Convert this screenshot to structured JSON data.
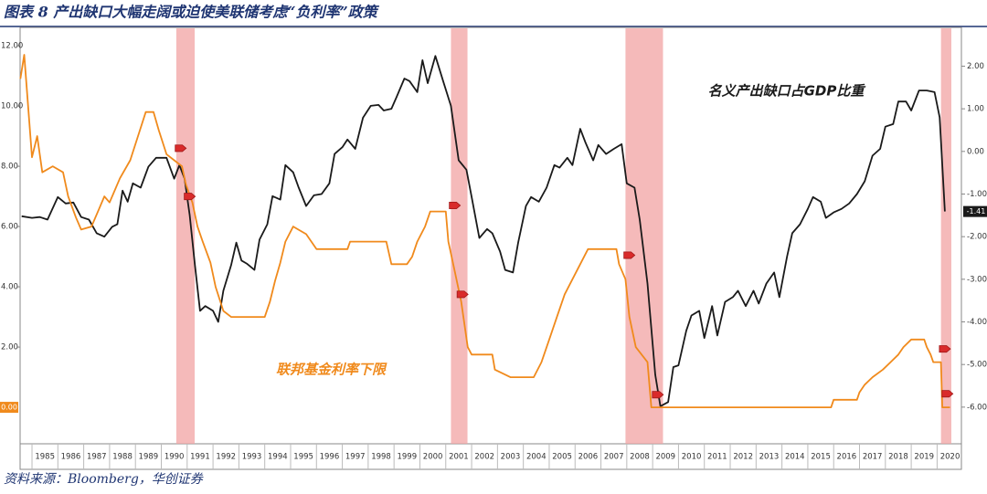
{
  "chart_data": {
    "type": "line",
    "title": "图表 8 产出缺口大幅走阔或迫使美联储考虑“负利率”政策",
    "source": "资料来源：Bloomberg，华创证券",
    "annotations": [
      {
        "text": "名义产出缺口占GDP比重",
        "series": 0
      },
      {
        "text": "联邦基金利率下限",
        "series": 1
      }
    ],
    "xlim": [
      1984.54,
      2020.94
    ],
    "xticks": [
      1985,
      1986,
      1987,
      1988,
      1989,
      1990,
      1991,
      1992,
      1993,
      1994,
      1995,
      1996,
      1997,
      1998,
      1999,
      2000,
      2001,
      2002,
      2003,
      2004,
      2005,
      2006,
      2007,
      2008,
      2009,
      2010,
      2011,
      2012,
      2013,
      2014,
      2015,
      2016,
      2017,
      2018,
      2019,
      2020
    ],
    "ylim": [
      -1.21,
      12.61
    ],
    "yticks": [
      {
        "value": 2,
        "label": "2.00"
      },
      {
        "value": 4,
        "label": "4.00"
      },
      {
        "value": 6,
        "label": "6.00"
      },
      {
        "value": 8,
        "label": "8.00"
      },
      {
        "value": 10,
        "label": "10.00"
      },
      {
        "value": 12,
        "label": "12.00"
      }
    ],
    "y2lim": [
      -6.86,
      2.91
    ],
    "y2ticks": [
      {
        "value": 2,
        "label": "2.00"
      },
      {
        "value": 1,
        "label": "1.00"
      },
      {
        "value": 0,
        "label": "0.00"
      },
      {
        "value": -1,
        "label": "-1.00"
      },
      {
        "value": -2,
        "label": "-2.00"
      },
      {
        "value": -3,
        "label": "-3.00"
      },
      {
        "value": -4,
        "label": "-4.00"
      },
      {
        "value": -5,
        "label": "-5.00"
      },
      {
        "value": -6,
        "label": "-6.00"
      }
    ],
    "shaded_periods": [
      [
        1990.58,
        1991.29
      ],
      [
        2001.2,
        2001.84
      ],
      [
        2007.95,
        2009.4
      ],
      [
        2020.15,
        2020.55
      ]
    ],
    "series": [
      {
        "name": "名义产出缺口占GDP比重",
        "color": "#1a1a1a",
        "axis": "y2",
        "end_label": "-1.41",
        "x": [
          1984.6,
          1985.0,
          1985.3,
          1985.6,
          1986.0,
          1986.3,
          1986.6,
          1986.9,
          1987.2,
          1987.5,
          1987.8,
          1988.1,
          1988.3,
          1988.5,
          1988.7,
          1988.9,
          1989.2,
          1989.5,
          1989.8,
          1990.2,
          1990.5,
          1990.7,
          1990.9,
          1991.1,
          1991.3,
          1991.5,
          1991.7,
          1992.0,
          1992.2,
          1992.4,
          1992.7,
          1992.9,
          1993.1,
          1993.3,
          1993.6,
          1993.8,
          1994.1,
          1994.3,
          1994.6,
          1994.8,
          1995.1,
          1995.3,
          1995.6,
          1995.9,
          1996.2,
          1996.5,
          1996.7,
          1997.0,
          1997.2,
          1997.5,
          1997.8,
          1998.1,
          1998.4,
          1998.6,
          1998.9,
          1999.1,
          1999.4,
          1999.6,
          1999.9,
          2000.1,
          2000.3,
          2000.6,
          2000.9,
          2001.2,
          2001.5,
          2001.8,
          2002.0,
          2002.3,
          2002.6,
          2002.8,
          2003.1,
          2003.3,
          2003.6,
          2003.8,
          2004.1,
          2004.3,
          2004.6,
          2004.9,
          2005.2,
          2005.4,
          2005.7,
          2005.9,
          2006.2,
          2006.4,
          2006.7,
          2006.9,
          2007.2,
          2007.5,
          2007.8,
          2008.0,
          2008.3,
          2008.5,
          2008.8,
          2009.1,
          2009.3,
          2009.6,
          2009.8,
          2010.0,
          2010.3,
          2010.5,
          2010.8,
          2011.0,
          2011.3,
          2011.5,
          2011.8,
          2012.1,
          2012.3,
          2012.6,
          2012.9,
          2013.1,
          2013.4,
          2013.7,
          2013.9,
          2014.2,
          2014.4,
          2014.7,
          2015.0,
          2015.2,
          2015.5,
          2015.7,
          2016.0,
          2016.3,
          2016.6,
          2016.9,
          2017.2,
          2017.5,
          2017.8,
          2018.0,
          2018.3,
          2018.5,
          2018.8,
          2019.0,
          2019.3,
          2019.6,
          2019.9,
          2020.1,
          2020.3
        ],
        "values": [
          -1.52,
          -1.56,
          -1.54,
          -1.6,
          -1.07,
          -1.22,
          -1.2,
          -1.54,
          -1.6,
          -1.92,
          -2.0,
          -1.77,
          -1.71,
          -0.92,
          -1.18,
          -0.75,
          -0.85,
          -0.36,
          -0.15,
          -0.15,
          -0.64,
          -0.32,
          -0.64,
          -1.5,
          -2.67,
          -3.74,
          -3.63,
          -3.74,
          -4.0,
          -3.27,
          -2.67,
          -2.14,
          -2.56,
          -2.63,
          -2.78,
          -2.07,
          -1.71,
          -1.05,
          -1.13,
          -0.32,
          -0.49,
          -0.83,
          -1.28,
          -1.03,
          -1.0,
          -0.75,
          -0.06,
          0.1,
          0.28,
          0.06,
          0.79,
          1.07,
          1.09,
          0.96,
          1.0,
          1.28,
          1.71,
          1.65,
          1.39,
          2.14,
          1.6,
          2.24,
          1.65,
          1.07,
          -0.21,
          -0.43,
          -1.07,
          -2.03,
          -1.82,
          -1.92,
          -2.35,
          -2.78,
          -2.84,
          -2.14,
          -1.28,
          -1.07,
          -1.18,
          -0.85,
          -0.32,
          -0.38,
          -0.15,
          -0.32,
          0.53,
          0.21,
          -0.21,
          0.15,
          -0.06,
          0.06,
          0.17,
          -0.75,
          -0.85,
          -1.6,
          -3.1,
          -5.24,
          -5.98,
          -5.88,
          -5.06,
          -5.02,
          -4.21,
          -3.85,
          -3.74,
          -4.38,
          -3.63,
          -4.32,
          -3.53,
          -3.42,
          -3.27,
          -3.63,
          -3.27,
          -3.57,
          -3.1,
          -2.84,
          -3.42,
          -2.46,
          -1.92,
          -1.71,
          -1.35,
          -1.07,
          -1.18,
          -1.56,
          -1.43,
          -1.35,
          -1.22,
          -1.0,
          -0.7,
          -0.1,
          0.06,
          0.58,
          0.64,
          1.17,
          1.17,
          0.96,
          1.43,
          1.43,
          1.39,
          0.8,
          -1.41
        ]
      },
      {
        "name": "联邦基金利率下限",
        "color": "#f08a1c",
        "axis": "y",
        "end_label": "0.00",
        "x": [
          1984.55,
          1984.7,
          1985.0,
          1985.2,
          1985.4,
          1985.8,
          1986.2,
          1986.4,
          1986.7,
          1986.9,
          1987.3,
          1987.6,
          1987.8,
          1988.0,
          1988.4,
          1988.8,
          1989.1,
          1989.4,
          1989.7,
          1989.9,
          1990.2,
          1990.5,
          1990.8,
          1990.95,
          1991.2,
          1991.4,
          1991.6,
          1991.9,
          1992.1,
          1992.4,
          1992.7,
          1993.5,
          1994.0,
          1994.2,
          1994.4,
          1994.6,
          1994.8,
          1995.1,
          1995.6,
          1996.0,
          1997.2,
          1997.3,
          1998.7,
          1998.9,
          1999.5,
          1999.7,
          1999.9,
          2000.2,
          2000.4,
          2001.0,
          2001.1,
          2001.35,
          2001.6,
          2001.85,
          2002.0,
          2002.8,
          2002.9,
          2003.5,
          2004.4,
          2004.7,
          2005.0,
          2005.3,
          2005.6,
          2005.9,
          2006.2,
          2006.5,
          2007.6,
          2007.7,
          2007.95,
          2008.1,
          2008.35,
          2008.8,
          2008.95,
          2015.9,
          2016.0,
          2016.9,
          2017.0,
          2017.2,
          2017.5,
          2017.9,
          2018.2,
          2018.5,
          2018.7,
          2019.0,
          2019.5,
          2019.6,
          2019.75,
          2019.85,
          2020.15,
          2020.2,
          2020.5
        ],
        "values": [
          10.9,
          11.7,
          8.3,
          9.0,
          7.8,
          8.0,
          7.8,
          7.0,
          6.3,
          5.9,
          6.0,
          6.6,
          7.0,
          6.8,
          7.6,
          8.2,
          9.0,
          9.8,
          9.8,
          9.2,
          8.4,
          8.2,
          8.0,
          7.4,
          6.8,
          6.0,
          5.5,
          4.8,
          4.0,
          3.2,
          3.0,
          3.0,
          3.0,
          3.5,
          4.2,
          4.8,
          5.5,
          6.0,
          5.75,
          5.25,
          5.25,
          5.5,
          5.5,
          4.75,
          4.75,
          5.0,
          5.5,
          6.0,
          6.5,
          6.5,
          5.5,
          4.5,
          3.5,
          2.0,
          1.75,
          1.75,
          1.25,
          1.0,
          1.0,
          1.5,
          2.25,
          3.0,
          3.75,
          4.25,
          4.75,
          5.25,
          5.25,
          4.75,
          4.25,
          3.0,
          2.0,
          1.5,
          0.0,
          0.0,
          0.25,
          0.25,
          0.5,
          0.75,
          1.0,
          1.25,
          1.5,
          1.75,
          2.0,
          2.25,
          2.25,
          2.0,
          1.75,
          1.5,
          1.5,
          0.0,
          0.0
        ]
      }
    ],
    "markers": {
      "color": "#d92b2b",
      "axis": "y",
      "x": [
        1990.75,
        1991.1,
        2001.35,
        2001.65,
        2008.1,
        2009.2,
        2020.3,
        2020.4
      ],
      "values": [
        8.6,
        7.0,
        6.7,
        3.75,
        5.05,
        0.42,
        1.94,
        0.45
      ]
    }
  }
}
